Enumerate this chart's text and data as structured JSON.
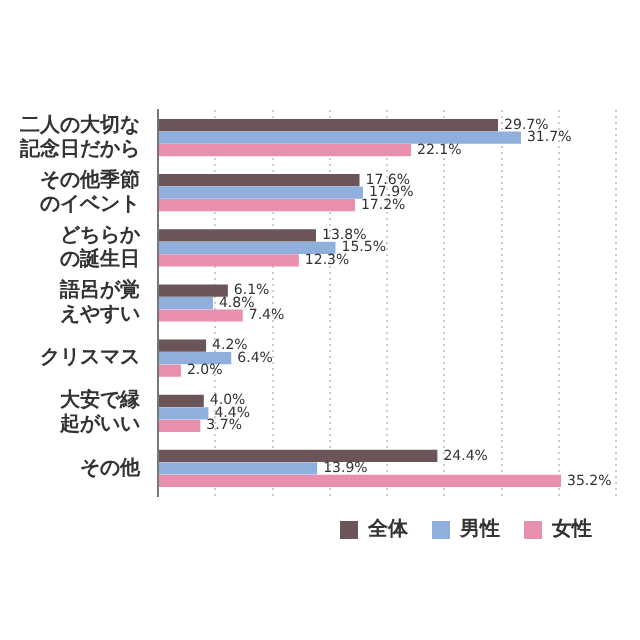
{
  "chart_data": {
    "type": "bar",
    "orientation": "horizontal",
    "categories": [
      "二人の大切な記念日だから",
      "その他季節のイベント",
      "どちらかの誕生日",
      "語呂が覚えやすい",
      "クリスマス",
      "大安で縁起がいい",
      "その他"
    ],
    "series": [
      {
        "name": "全体",
        "color": "#6b5558",
        "values": [
          29.7,
          17.6,
          13.8,
          6.1,
          4.2,
          4.0,
          24.4
        ],
        "value_labels": [
          "29.7%",
          "17.6%",
          "13.8%",
          "6.1%",
          "4.2%",
          "4.0%",
          "24.4%"
        ]
      },
      {
        "name": "男性",
        "color": "#8fb0dd",
        "values": [
          31.7,
          17.9,
          15.5,
          4.8,
          6.4,
          4.4,
          13.9
        ],
        "value_labels": [
          "31.7%",
          "17.9%",
          "15.5%",
          "4.8%",
          "6.4%",
          "4.4%",
          "13.9%"
        ]
      },
      {
        "name": "女性",
        "color": "#e88fb0",
        "values": [
          22.1,
          17.2,
          12.3,
          7.4,
          2.0,
          3.7,
          35.2
        ],
        "value_labels": [
          "22.1%",
          "17.2%",
          "12.3%",
          "7.4%",
          "2.0%",
          "3.7%",
          "35.2%"
        ]
      }
    ],
    "xlim": [
      0,
      40
    ],
    "xticks": [
      {
        "value": 0,
        "label": null
      },
      {
        "value": 5,
        "label": null
      },
      {
        "value": 10,
        "label": null
      },
      {
        "value": 15,
        "label": null
      },
      {
        "value": 20,
        "label": null
      },
      {
        "value": 25,
        "label": null
      },
      {
        "value": 30,
        "label": null
      },
      {
        "value": 35,
        "label": null
      },
      {
        "value": 40,
        "label": null
      }
    ],
    "grid": "x",
    "tick_labels": "y",
    "legend": "bottom right"
  }
}
